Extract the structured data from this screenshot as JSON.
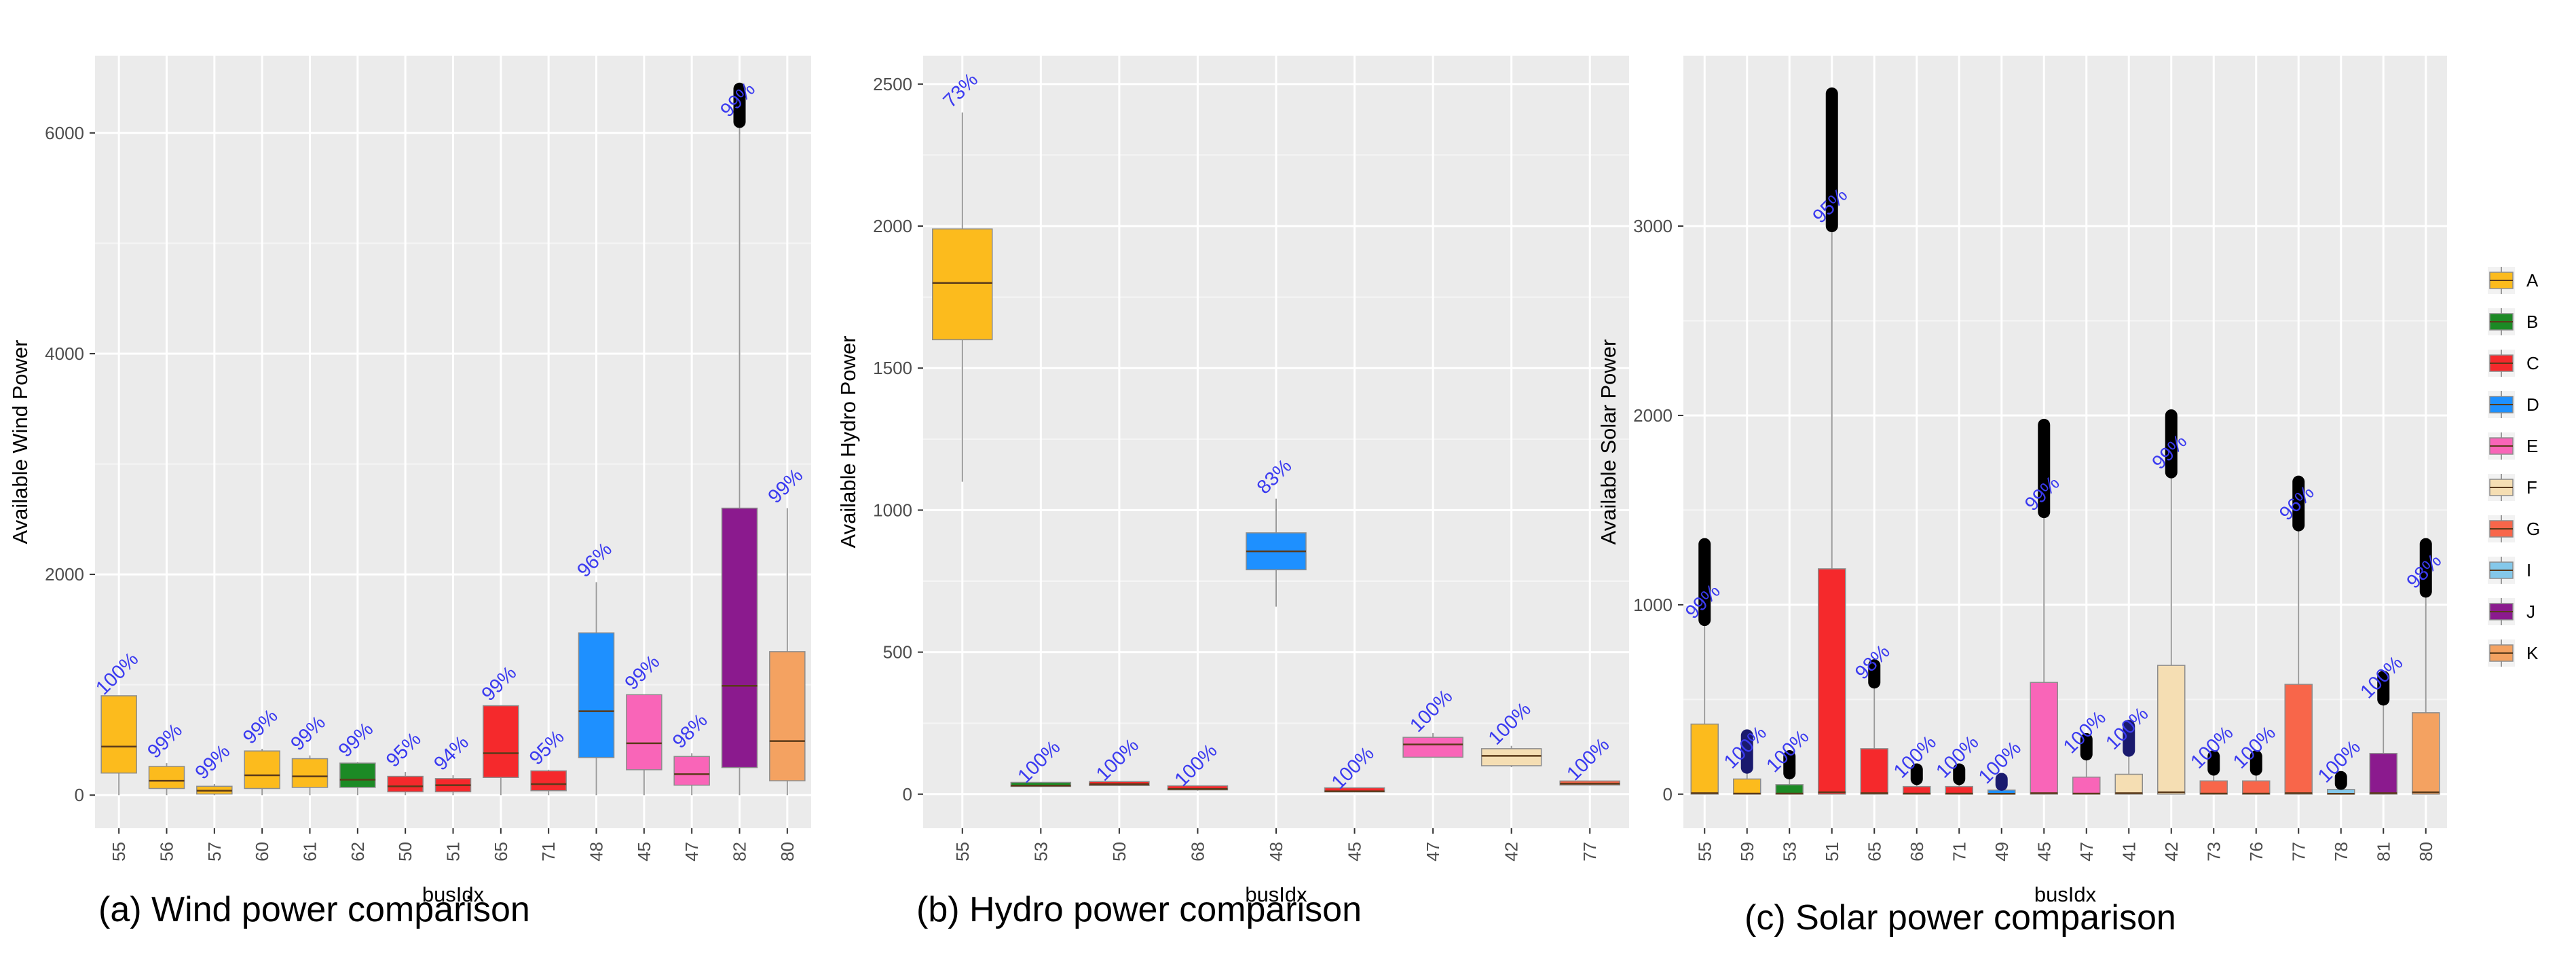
{
  "colors": {
    "A": "#FCBB1D",
    "B": "#1C8A25",
    "C": "#F5292C",
    "D": "#1E90FF",
    "E": "#F965B8",
    "F": "#F5DEB3",
    "G": "#F8664A",
    "I": "#84C8EA",
    "J": "#8B1A8E",
    "K": "#F4A261",
    "panel_bg": "#EBEBEB",
    "grid": "#FFFFFF",
    "annotation": "#3A3AF0",
    "outlier": "#000000"
  },
  "legend": {
    "entries": [
      "A",
      "B",
      "C",
      "D",
      "E",
      "F",
      "G",
      "I",
      "J",
      "K"
    ]
  },
  "captions": {
    "wind": "(a) Wind power comparison",
    "hydro": "(b) Hydro power comparison",
    "solar": "(c) Solar power comparison"
  },
  "chart_data": [
    {
      "type": "box",
      "xlabel": "busIdx",
      "ylabel": "Available Wind Power",
      "ylim": [
        -300,
        6700
      ],
      "yticks": [
        0,
        2000,
        4000,
        6000
      ],
      "categories": [
        "55",
        "56",
        "57",
        "60",
        "61",
        "62",
        "50",
        "51",
        "65",
        "71",
        "48",
        "45",
        "47",
        "82",
        "80"
      ],
      "groups": [
        "A",
        "A",
        "A",
        "A",
        "A",
        "B",
        "C",
        "C",
        "C",
        "C",
        "D",
        "E",
        "E",
        "J",
        "K"
      ],
      "boxes": [
        {
          "min": 0,
          "q1": 200,
          "median": 440,
          "q3": 900,
          "max": 900
        },
        {
          "min": 0,
          "q1": 60,
          "median": 130,
          "q3": 260,
          "max": 290
        },
        {
          "min": 0,
          "q1": 10,
          "median": 40,
          "q3": 80,
          "max": 100
        },
        {
          "min": 0,
          "q1": 60,
          "median": 180,
          "q3": 400,
          "max": 420
        },
        {
          "min": 0,
          "q1": 70,
          "median": 170,
          "q3": 330,
          "max": 360
        },
        {
          "min": 0,
          "q1": 70,
          "median": 140,
          "q3": 290,
          "max": 300
        },
        {
          "min": 0,
          "q1": 30,
          "median": 80,
          "q3": 170,
          "max": 210
        },
        {
          "min": 0,
          "q1": 30,
          "median": 90,
          "q3": 150,
          "max": 180
        },
        {
          "min": 0,
          "q1": 160,
          "median": 380,
          "q3": 810,
          "max": 810
        },
        {
          "min": 0,
          "q1": 40,
          "median": 100,
          "q3": 220,
          "max": 230
        },
        {
          "min": 0,
          "q1": 340,
          "median": 760,
          "q3": 1470,
          "max": 1930
        },
        {
          "min": 0,
          "q1": 230,
          "median": 470,
          "q3": 910,
          "max": 910
        },
        {
          "min": 0,
          "q1": 90,
          "median": 190,
          "q3": 350,
          "max": 380
        },
        {
          "min": 0,
          "q1": 250,
          "median": 990,
          "q3": 2600,
          "max": 6100
        },
        {
          "min": 0,
          "q1": 130,
          "median": 490,
          "q3": 1300,
          "max": 2600
        }
      ],
      "outliers": [
        [],
        [],
        [],
        [],
        [],
        [],
        [],
        [],
        [],
        [],
        [],
        [],
        [],
        [
          6100,
          6400
        ],
        []
      ],
      "labels": [
        "100%",
        "99%",
        "99%",
        "99%",
        "99%",
        "99%",
        "95%",
        "94%",
        "99%",
        "95%",
        "96%",
        "99%",
        "98%",
        "99%",
        "99%"
      ]
    },
    {
      "type": "box",
      "xlabel": "busIdx",
      "ylabel": "Available Hydro Power",
      "ylim": [
        -120,
        2600
      ],
      "yticks": [
        0,
        500,
        1000,
        1500,
        2000,
        2500
      ],
      "categories": [
        "55",
        "53",
        "50",
        "68",
        "48",
        "45",
        "47",
        "42",
        "77"
      ],
      "groups": [
        "A",
        "B",
        "C",
        "C",
        "D",
        "C",
        "E",
        "F",
        "G"
      ],
      "boxes": [
        {
          "min": 1100,
          "q1": 1600,
          "median": 1800,
          "q3": 1990,
          "max": 2400
        },
        {
          "min": 25,
          "q1": 27,
          "median": 30,
          "q3": 33,
          "max": 36
        },
        {
          "min": 28,
          "q1": 30,
          "median": 35,
          "q3": 40,
          "max": 43
        },
        {
          "min": 12,
          "q1": 15,
          "median": 18,
          "q3": 21,
          "max": 24
        },
        {
          "min": 660,
          "q1": 790,
          "median": 855,
          "q3": 920,
          "max": 1040
        },
        {
          "min": 6,
          "q1": 8,
          "median": 10,
          "q3": 12,
          "max": 14
        },
        {
          "min": 130,
          "q1": 130,
          "median": 175,
          "q3": 200,
          "max": 215
        },
        {
          "min": 95,
          "q1": 100,
          "median": 135,
          "q3": 160,
          "max": 170
        },
        {
          "min": 30,
          "q1": 32,
          "median": 37,
          "q3": 42,
          "max": 45
        }
      ],
      "outliers": [
        [],
        [],
        [],
        [],
        [],
        [],
        [],
        [],
        []
      ],
      "labels": [
        "73%",
        "100%",
        "100%",
        "100%",
        "83%",
        "100%",
        "100%",
        "100%",
        "100%"
      ]
    },
    {
      "type": "box",
      "xlabel": "busIdx",
      "ylabel": "Available Solar Power",
      "ylim": [
        -180,
        3900
      ],
      "yticks": [
        0,
        1000,
        2000,
        3000
      ],
      "categories": [
        "55",
        "59",
        "53",
        "51",
        "65",
        "68",
        "71",
        "49",
        "45",
        "47",
        "41",
        "42",
        "73",
        "76",
        "77",
        "78",
        "81",
        "80"
      ],
      "groups": [
        "A",
        "A",
        "B",
        "C",
        "C",
        "C",
        "C",
        "D",
        "E",
        "E",
        "F",
        "F",
        "G",
        "G",
        "G",
        "I",
        "J",
        "K"
      ],
      "boxes": [
        {
          "min": 0,
          "q1": 0,
          "median": 5,
          "q3": 370,
          "max": 900
        },
        {
          "min": 0,
          "q1": 0,
          "median": 3,
          "q3": 80,
          "max": 130
        },
        {
          "min": 0,
          "q1": 0,
          "median": 3,
          "q3": 50,
          "max": 110
        },
        {
          "min": 0,
          "q1": 0,
          "median": 10,
          "q3": 1190,
          "max": 2990
        },
        {
          "min": 0,
          "q1": 0,
          "median": 5,
          "q3": 240,
          "max": 580
        },
        {
          "min": 0,
          "q1": 0,
          "median": 3,
          "q3": 40,
          "max": 80
        },
        {
          "min": 0,
          "q1": 0,
          "median": 3,
          "q3": 40,
          "max": 80
        },
        {
          "min": 0,
          "q1": 0,
          "median": 2,
          "q3": 20,
          "max": 50
        },
        {
          "min": 0,
          "q1": 0,
          "median": 5,
          "q3": 590,
          "max": 1470
        },
        {
          "min": 0,
          "q1": 0,
          "median": 3,
          "q3": 90,
          "max": 210
        },
        {
          "min": 0,
          "q1": 0,
          "median": 5,
          "q3": 105,
          "max": 230
        },
        {
          "min": 0,
          "q1": 0,
          "median": 10,
          "q3": 680,
          "max": 1690
        },
        {
          "min": 0,
          "q1": 0,
          "median": 3,
          "q3": 70,
          "max": 130
        },
        {
          "min": 0,
          "q1": 0,
          "median": 3,
          "q3": 70,
          "max": 130
        },
        {
          "min": 0,
          "q1": 0,
          "median": 5,
          "q3": 580,
          "max": 1420
        },
        {
          "min": 0,
          "q1": 0,
          "median": 2,
          "q3": 25,
          "max": 55
        },
        {
          "min": 0,
          "q1": 0,
          "median": 5,
          "q3": 215,
          "max": 500
        },
        {
          "min": 0,
          "q1": 0,
          "median": 10,
          "q3": 430,
          "max": 1060
        }
      ],
      "outliers": [
        [
          920,
          1320
        ],
        [
          140,
          310
        ],
        [
          110,
          200
        ],
        [
          3000,
          3700
        ],
        [
          590,
          680
        ],
        [
          80,
          130
        ],
        [
          80,
          130
        ],
        [
          50,
          80
        ],
        [
          1490,
          1950
        ],
        [
          210,
          290
        ],
        [
          230,
          360
        ],
        [
          1700,
          2000
        ],
        [
          130,
          200
        ],
        [
          130,
          200
        ],
        [
          1420,
          1650
        ],
        [
          55,
          90
        ],
        [
          500,
          620
        ],
        [
          1070,
          1320
        ]
      ],
      "labels": [
        "99%",
        "100%",
        "100%",
        "95%",
        "98%",
        "100%",
        "100%",
        "100%",
        "99%",
        "100%",
        "100%",
        "99%",
        "100%",
        "100%",
        "96%",
        "100%",
        "100%",
        "98%"
      ]
    }
  ]
}
